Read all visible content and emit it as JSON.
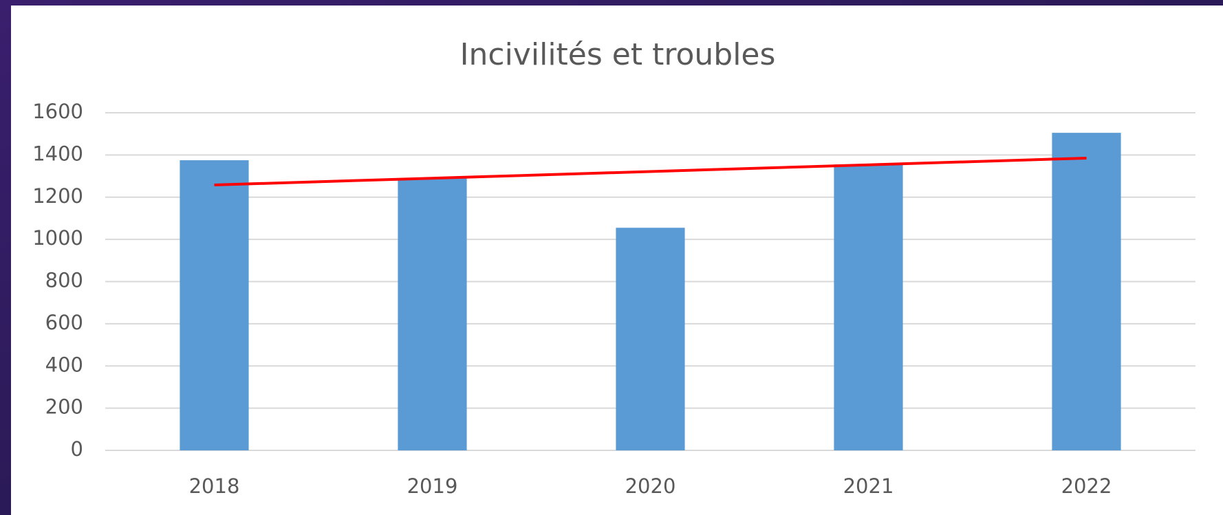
{
  "chart_data": {
    "type": "bar",
    "title": "Incivilités et troubles",
    "categories": [
      "2018",
      "2019",
      "2020",
      "2021",
      "2022"
    ],
    "values": [
      1375,
      1290,
      1055,
      1355,
      1505
    ],
    "color": "#5b9bd5",
    "trendline": {
      "color": "#ff0000",
      "values": [
        1258,
        1385
      ]
    },
    "ylim": [
      0,
      1600
    ],
    "yticks": [
      0,
      200,
      400,
      600,
      800,
      1000,
      1200,
      1400,
      1600
    ],
    "grid": true
  }
}
